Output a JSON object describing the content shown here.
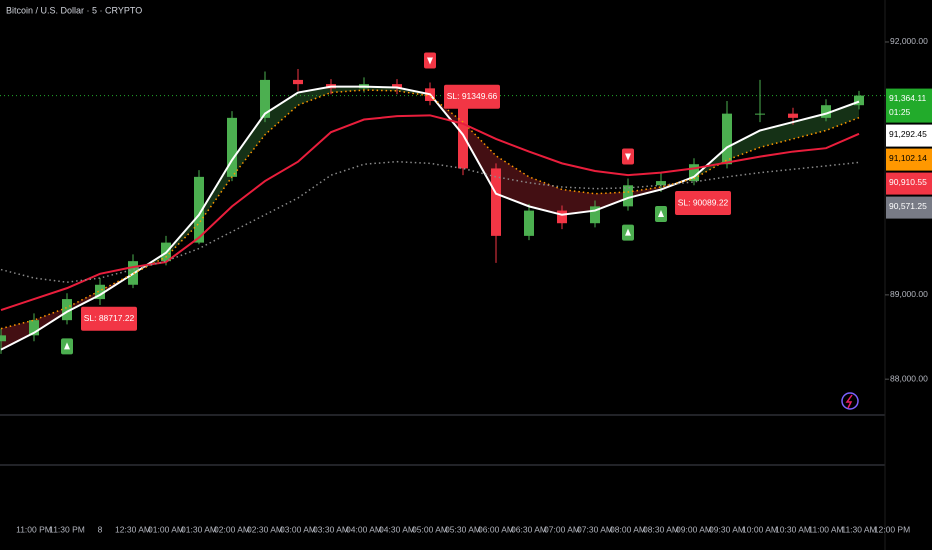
{
  "chart_data": {
    "type": "candlestick",
    "title": "Bitcoin / U.S. Dollar · 5 · CRYPTO",
    "categories": [
      null,
      "11:00 PM",
      "11:30 PM",
      "8",
      "12:30 AM",
      "01:00 AM",
      "01:30 AM",
      "02:00 AM",
      "02:30 AM",
      "03:00 AM",
      "03:30 AM",
      "04:00 AM",
      "04:30 AM",
      "05:00 AM",
      "05:30 AM",
      "06:00 AM",
      "06:30 AM",
      "07:00 AM",
      "07:30 AM",
      "08:00 AM",
      "08:30 AM",
      "09:00 AM",
      "09:30 AM",
      "10:00 AM",
      "10:30 AM",
      "11:00 AM",
      "11:30 AM",
      "12:00 PM"
    ],
    "open": [
      88450,
      88520,
      88700,
      88950,
      89120,
      89400,
      89620,
      90400,
      91100,
      91550,
      91500,
      91450,
      91500,
      91450,
      91300,
      90500,
      89700,
      90000,
      89850,
      90050,
      90300,
      90350,
      90550,
      91150,
      91150,
      91100,
      91250,
      null
    ],
    "high": [
      88600,
      88780,
      89020,
      89200,
      89480,
      89700,
      90480,
      91180,
      91650,
      91680,
      91560,
      91580,
      91560,
      91520,
      91350,
      90560,
      90080,
      90060,
      90120,
      90380,
      90450,
      90620,
      91300,
      91550,
      91220,
      91320,
      91420,
      null
    ],
    "low": [
      88300,
      88450,
      88650,
      88880,
      89080,
      89350,
      89600,
      90350,
      91050,
      91420,
      91380,
      91400,
      91380,
      91250,
      90420,
      89380,
      89650,
      89780,
      89800,
      90000,
      90220,
      90300,
      90500,
      91050,
      91020,
      91060,
      91200,
      null
    ],
    "close": [
      88520,
      88700,
      88950,
      89120,
      89400,
      89620,
      90400,
      91100,
      91550,
      91500,
      91450,
      91500,
      91450,
      91300,
      90500,
      89700,
      90000,
      89850,
      90050,
      90300,
      90350,
      90550,
      91150,
      91150,
      91100,
      91250,
      91364,
      null
    ],
    "up_color": "#4caf50",
    "down_color": "#f23645",
    "series": [
      {
        "color": "#ffffff",
        "style": "solid",
        "values": [
          88350,
          88550,
          88800,
          89000,
          89250,
          89500,
          89950,
          90600,
          91150,
          91400,
          91470,
          91470,
          91460,
          91380,
          90900,
          90200,
          90050,
          89950,
          90000,
          90150,
          90250,
          90400,
          90750,
          90950,
          91050,
          91150,
          91292.45,
          null
        ]
      },
      {
        "color": "#ff9800",
        "style": "dotted",
        "values": [
          88600,
          88700,
          88850,
          89050,
          89250,
          89450,
          89850,
          90400,
          90900,
          91250,
          91400,
          91430,
          91420,
          91360,
          91050,
          90650,
          90400,
          90250,
          90200,
          90220,
          90280,
          90380,
          90600,
          90750,
          90850,
          90950,
          91102.14,
          null
        ]
      },
      {
        "color": "#e91e3c",
        "style": "solid",
        "values": [
          88820,
          88950,
          89080,
          89250,
          89330,
          89390,
          89680,
          90050,
          90350,
          90580,
          90930,
          91080,
          91120,
          91130,
          91030,
          90850,
          90700,
          90560,
          90470,
          90420,
          90450,
          90500,
          90570,
          90640,
          90700,
          90740,
          90910.55,
          null
        ]
      },
      {
        "color": "#8a8a8a",
        "style": "dotted",
        "values": [
          89300,
          89200,
          89150,
          89200,
          89300,
          89400,
          89550,
          89750,
          89950,
          90150,
          90420,
          90550,
          90580,
          90560,
          90500,
          90400,
          90330,
          90280,
          90260,
          90270,
          90300,
          90340,
          90400,
          90450,
          90490,
          90530,
          90571.25,
          null
        ]
      }
    ],
    "ylim": [
      87575,
      92498
    ],
    "yticks": [
      {
        "value": 88000,
        "label": "88,000.00"
      },
      {
        "value": 89000,
        "label": "89,000.00"
      },
      {
        "value": 92000,
        "label": "92,000.00"
      }
    ],
    "price_tags": [
      {
        "value": 91364.11,
        "label": "91,364.11",
        "color": "#22ab2b",
        "text_color": "#ffffff"
      },
      {
        "value": 91292.45,
        "label": "91,292.45",
        "color": "#ffffff",
        "text_color": "#000000"
      },
      {
        "value": 91102.14,
        "label": "91,102.14",
        "color": "#ff9800",
        "text_color": "#000000"
      },
      {
        "value": 90910.55,
        "label": "90,910.55",
        "color": "#f23645",
        "text_color": "#ffffff"
      },
      {
        "value": 90571.25,
        "label": "90,571.25",
        "color": "#787b86",
        "text_color": "#ffffff"
      }
    ],
    "countdown": "01:25",
    "signals": [
      {
        "direction": "up",
        "index": 2
      },
      {
        "direction": "down",
        "index": 13
      },
      {
        "direction": "down",
        "index": 19
      },
      {
        "direction": "up",
        "index": 19
      },
      {
        "direction": "up",
        "index": 20
      }
    ],
    "sl_labels": [
      {
        "label": "SL: 88717.22",
        "value": 88717.22,
        "index": 2
      },
      {
        "label": "SL: 91349.66",
        "value": 91349.66,
        "index": 13
      },
      {
        "label": "SL: 90089.22",
        "value": 90089.22,
        "index": 20
      }
    ]
  }
}
